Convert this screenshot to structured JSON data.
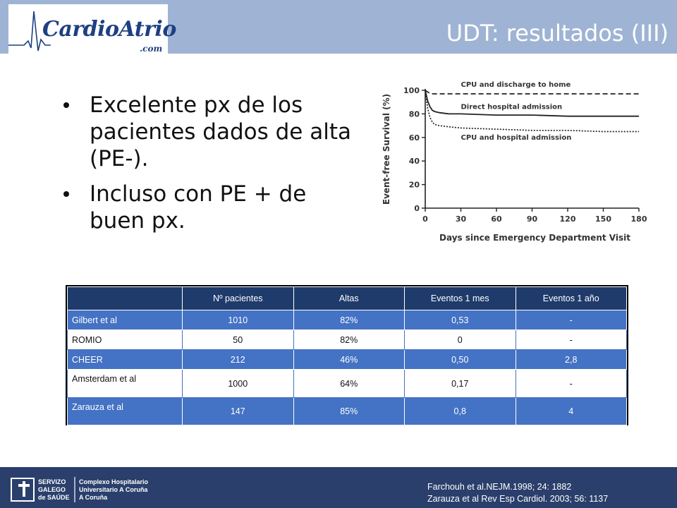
{
  "header": {
    "logo_text": "CardioAtrio",
    "logo_sub": ".com",
    "title": "UDT: resultados (III)"
  },
  "bullets": [
    "Excelente px de los pacientes dados de alta (PE-).",
    "Incluso con PE + de buen px."
  ],
  "chart_data": {
    "type": "line",
    "title": "",
    "xlabel": "Days since Emergency Department Visit",
    "ylabel": "Event-free Survival (%)",
    "xlim": [
      0,
      180
    ],
    "ylim": [
      0,
      100
    ],
    "xticks": [
      0,
      30,
      60,
      90,
      120,
      150,
      180
    ],
    "yticks": [
      0,
      20,
      40,
      60,
      80,
      100
    ],
    "grid": false,
    "series": [
      {
        "name": "CPU and discharge to home",
        "style": "dashed",
        "x": [
          0,
          3,
          5,
          8,
          10,
          180
        ],
        "y": [
          100,
          98,
          97,
          97,
          97,
          97
        ]
      },
      {
        "name": "Direct hospital admission",
        "style": "solid",
        "x": [
          0,
          2,
          4,
          6,
          8,
          12,
          20,
          30,
          60,
          90,
          120,
          150,
          180
        ],
        "y": [
          100,
          91,
          86,
          83,
          82,
          81,
          80,
          80,
          79,
          79,
          78,
          78,
          78
        ]
      },
      {
        "name": "CPU and hospital admission",
        "style": "dotted",
        "x": [
          0,
          2,
          4,
          6,
          8,
          12,
          20,
          30,
          60,
          90,
          120,
          150,
          180
        ],
        "y": [
          100,
          85,
          77,
          73,
          71,
          70,
          69,
          68,
          67,
          66,
          66,
          65,
          65
        ]
      }
    ]
  },
  "table": {
    "headers": [
      "",
      "Nº pacientes",
      "Altas",
      "Eventos 1 mes",
      "Eventos 1 año"
    ],
    "rows": [
      [
        "Gilbert et al",
        "1010",
        "82%",
        "0,53",
        "-"
      ],
      [
        "ROMIO",
        "50",
        "82%",
        "0",
        "-"
      ],
      [
        "CHEER",
        "212",
        "46%",
        "0,50",
        "2,8"
      ],
      [
        "Amsterdam et al",
        "1000",
        "64%",
        "0,17",
        "-"
      ],
      [
        "Zarauza et al",
        "147",
        "85%",
        "0,8",
        "4"
      ]
    ]
  },
  "footer": {
    "logo_lines": [
      "SERVIZO",
      "GALEGO",
      "de SAÚDE"
    ],
    "hospital_lines": [
      "Complexo Hospitalario",
      "Universitario A Coruña",
      "A Coruña"
    ],
    "references": [
      "Farchouh et al.NEJM.1998; 24: 1882",
      "Zarauza et al Rev Esp Cardiol. 2003; 56: 1137"
    ]
  },
  "colors": {
    "header_bar": "#9fb4d4",
    "footer_bar": "#2a3f6c",
    "table_header": "#1f3b6b",
    "table_row": "#4472c4",
    "logo_blue": "#1e3f82"
  }
}
